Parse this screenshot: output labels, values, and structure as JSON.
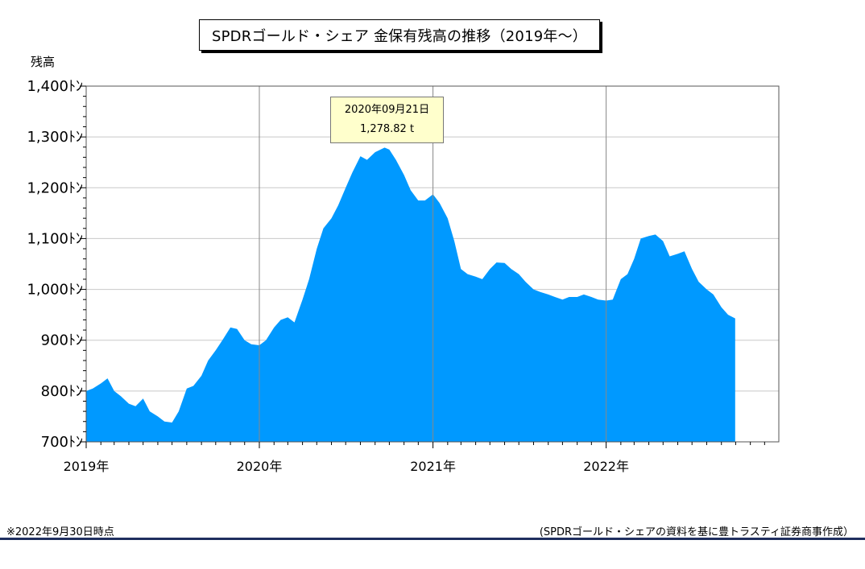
{
  "header": {
    "title": "SPDRゴールド・シェア 金保有残高の推移（2019年～）"
  },
  "footer": {
    "note_left": "※2022年9月30日時点",
    "note_right": "(SPDRゴールド・シェアの資料を基に豊トラスティ証券商事作成）"
  },
  "tooltip": {
    "date": "2020年09月21日",
    "value": "1,278.82 t"
  },
  "colors": {
    "area_fill": "#0099ff",
    "grid": "#c8c8c8",
    "year_line": "#888888",
    "tooltip_bg": "#ffffcc",
    "bottom_rule": "#1f2f5f"
  },
  "chart_data": {
    "type": "area",
    "title": "SPDRゴールド・シェア 金保有残高の推移（2019年～）",
    "ylabel": "残高",
    "xlabel": "",
    "ylim": [
      700,
      1400
    ],
    "xlim": [
      "2019-01-01",
      "2022-12-31"
    ],
    "grid": true,
    "y_tick_labels": [
      "700ﾄﾝ",
      "800ﾄﾝ",
      "900ﾄﾝ",
      "1,000ﾄﾝ",
      "1,100ﾄﾝ",
      "1,200ﾄﾝ",
      "1,300ﾄﾝ",
      "1,400ﾄﾝ"
    ],
    "y_ticks": [
      700,
      800,
      900,
      1000,
      1100,
      1200,
      1300,
      1400
    ],
    "x_tick_labels": [
      "2019年",
      "2020年",
      "2021年",
      "2022年"
    ],
    "x_ticks": [
      "2019-01-01",
      "2020-01-01",
      "2021-01-01",
      "2022-01-01"
    ],
    "series": [
      {
        "values": [
          [
            "2019-01-01",
            800
          ],
          [
            "2019-01-15",
            805
          ],
          [
            "2019-02-01",
            815
          ],
          [
            "2019-02-15",
            825
          ],
          [
            "2019-03-01",
            800
          ],
          [
            "2019-03-15",
            790
          ],
          [
            "2019-04-01",
            775
          ],
          [
            "2019-04-15",
            770
          ],
          [
            "2019-05-01",
            785
          ],
          [
            "2019-05-15",
            760
          ],
          [
            "2019-06-01",
            750
          ],
          [
            "2019-06-15",
            740
          ],
          [
            "2019-07-01",
            738
          ],
          [
            "2019-07-15",
            760
          ],
          [
            "2019-08-01",
            805
          ],
          [
            "2019-08-15",
            810
          ],
          [
            "2019-09-01",
            830
          ],
          [
            "2019-09-15",
            860
          ],
          [
            "2019-10-01",
            880
          ],
          [
            "2019-10-15",
            900
          ],
          [
            "2019-11-01",
            925
          ],
          [
            "2019-11-15",
            922
          ],
          [
            "2019-12-01",
            900
          ],
          [
            "2019-12-15",
            892
          ],
          [
            "2020-01-01",
            890
          ],
          [
            "2020-01-15",
            900
          ],
          [
            "2020-02-01",
            925
          ],
          [
            "2020-02-15",
            940
          ],
          [
            "2020-03-01",
            945
          ],
          [
            "2020-03-15",
            935
          ],
          [
            "2020-04-01",
            980
          ],
          [
            "2020-04-15",
            1020
          ],
          [
            "2020-05-01",
            1080
          ],
          [
            "2020-05-15",
            1120
          ],
          [
            "2020-06-01",
            1140
          ],
          [
            "2020-06-15",
            1165
          ],
          [
            "2020-07-01",
            1200
          ],
          [
            "2020-07-15",
            1230
          ],
          [
            "2020-08-01",
            1262
          ],
          [
            "2020-08-15",
            1255
          ],
          [
            "2020-09-01",
            1270
          ],
          [
            "2020-09-21",
            1279
          ],
          [
            "2020-10-01",
            1275
          ],
          [
            "2020-10-15",
            1255
          ],
          [
            "2020-11-01",
            1225
          ],
          [
            "2020-11-15",
            1195
          ],
          [
            "2020-12-01",
            1175
          ],
          [
            "2020-12-15",
            1175
          ],
          [
            "2021-01-01",
            1187
          ],
          [
            "2021-01-15",
            1170
          ],
          [
            "2021-02-01",
            1140
          ],
          [
            "2021-02-15",
            1095
          ],
          [
            "2021-03-01",
            1040
          ],
          [
            "2021-03-15",
            1030
          ],
          [
            "2021-04-01",
            1025
          ],
          [
            "2021-04-15",
            1020
          ],
          [
            "2021-05-01",
            1040
          ],
          [
            "2021-05-15",
            1053
          ],
          [
            "2021-06-01",
            1052
          ],
          [
            "2021-06-15",
            1040
          ],
          [
            "2021-07-01",
            1030
          ],
          [
            "2021-07-15",
            1015
          ],
          [
            "2021-08-01",
            1000
          ],
          [
            "2021-08-15",
            995
          ],
          [
            "2021-09-01",
            990
          ],
          [
            "2021-09-15",
            985
          ],
          [
            "2021-10-01",
            980
          ],
          [
            "2021-10-15",
            985
          ],
          [
            "2021-11-01",
            985
          ],
          [
            "2021-11-15",
            990
          ],
          [
            "2021-12-01",
            985
          ],
          [
            "2021-12-15",
            980
          ],
          [
            "2022-01-01",
            978
          ],
          [
            "2022-01-15",
            980
          ],
          [
            "2022-02-01",
            1020
          ],
          [
            "2022-02-15",
            1030
          ],
          [
            "2022-03-01",
            1060
          ],
          [
            "2022-03-15",
            1100
          ],
          [
            "2022-04-01",
            1105
          ],
          [
            "2022-04-15",
            1108
          ],
          [
            "2022-05-01",
            1095
          ],
          [
            "2022-05-15",
            1065
          ],
          [
            "2022-06-01",
            1070
          ],
          [
            "2022-06-15",
            1075
          ],
          [
            "2022-07-01",
            1040
          ],
          [
            "2022-07-15",
            1015
          ],
          [
            "2022-08-01",
            1000
          ],
          [
            "2022-08-15",
            990
          ],
          [
            "2022-09-01",
            965
          ],
          [
            "2022-09-15",
            950
          ],
          [
            "2022-09-30",
            943
          ]
        ]
      }
    ]
  }
}
